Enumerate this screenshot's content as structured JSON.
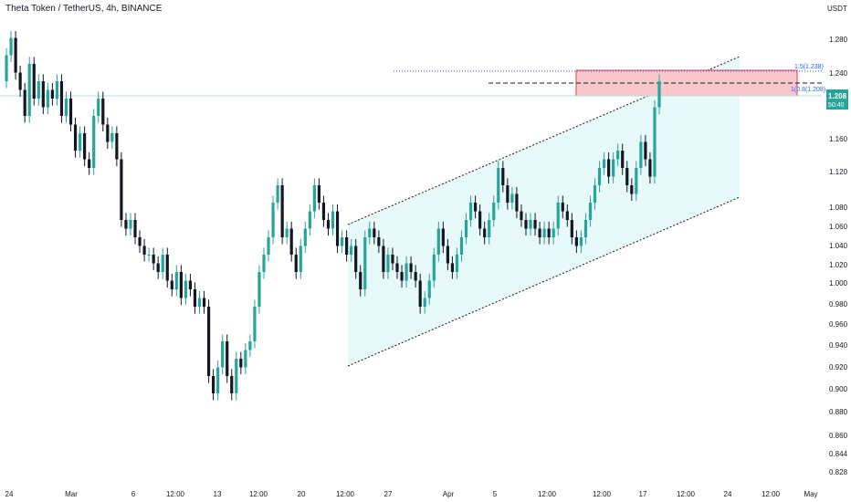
{
  "header": {
    "title": "Theta Token / TetherUS, 4h, BINANCE",
    "currency": "USDT"
  },
  "colors": {
    "up": "#26a69a",
    "down": "#131722",
    "channel_fill": "#e0f7f7",
    "target_zone": "#f8c8cc",
    "target_border": "#e0404f",
    "fib_line": "#2962ff",
    "last_price_bg": "#26a69a"
  },
  "chart_data": {
    "type": "candlestick",
    "title": "Theta Token / TetherUS, 4h, BINANCE",
    "ylabel": "USDT",
    "ylim": [
      0.82,
      1.3
    ],
    "y_ticks": [
      1.28,
      1.24,
      1.2,
      1.16,
      1.12,
      1.08,
      1.06,
      1.04,
      1.02,
      1.0,
      0.98,
      0.96,
      0.94,
      0.92,
      0.9,
      0.88,
      0.86,
      0.844,
      0.828
    ],
    "x_ticks": [
      "24",
      "Mar",
      "6",
      "12:00",
      "13",
      "12:00",
      "20",
      "12:00",
      "27",
      "Apr",
      "5",
      "12:00",
      "12:00",
      "17",
      "12:00",
      "24",
      "12:00",
      "May"
    ],
    "last_price": "1.208",
    "countdown": "50:40",
    "annotations": {
      "fib_upper": "1.5(1.238)",
      "fib_lower": "1(0.8(1.208)"
    },
    "price_path": [
      1.22,
      1.25,
      1.27,
      1.23,
      1.21,
      1.18,
      1.24,
      1.2,
      1.22,
      1.19,
      1.21,
      1.2,
      1.22,
      1.18,
      1.2,
      1.17,
      1.14,
      1.16,
      1.13,
      1.12,
      1.18,
      1.2,
      1.17,
      1.15,
      1.16,
      1.13,
      1.06,
      1.05,
      1.06,
      1.04,
      1.03,
      1.02,
      1.02,
      1.01,
      1.0,
      1.02,
      0.99,
      0.98,
      1.0,
      0.97,
      0.99,
      0.98,
      0.96,
      0.97,
      0.96,
      0.88,
      0.86,
      0.89,
      0.92,
      0.88,
      0.86,
      0.9,
      0.89,
      0.91,
      0.92,
      0.96,
      1.0,
      1.02,
      1.04,
      1.08,
      1.1,
      1.04,
      1.05,
      1.02,
      1.0,
      1.03,
      1.05,
      1.07,
      1.1,
      1.08,
      1.06,
      1.05,
      1.07,
      1.03,
      1.04,
      1.02,
      1.03,
      1.0,
      0.98,
      1.04,
      1.05,
      1.04,
      1.03,
      1.0,
      1.02,
      1.01,
      1.0,
      0.99,
      1.01,
      1.0,
      0.99,
      0.96,
      0.97,
      0.99,
      1.02,
      1.05,
      1.03,
      1.01,
      1.0,
      1.02,
      1.04,
      1.06,
      1.08,
      1.07,
      1.05,
      1.04,
      1.06,
      1.08,
      1.12,
      1.1,
      1.08,
      1.09,
      1.07,
      1.06,
      1.05,
      1.06,
      1.05,
      1.04,
      1.05,
      1.04,
      1.05,
      1.08,
      1.07,
      1.06,
      1.04,
      1.03,
      1.04,
      1.06,
      1.08,
      1.1,
      1.12,
      1.13,
      1.11,
      1.13,
      1.14,
      1.12,
      1.1,
      1.09,
      1.12,
      1.15,
      1.13,
      1.11,
      1.19,
      1.22
    ]
  }
}
